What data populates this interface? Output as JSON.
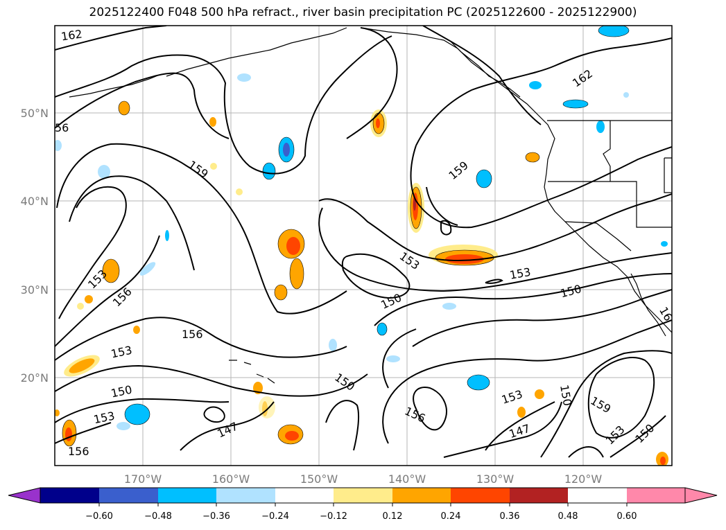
{
  "title": "2025122400 F048 500 hPa refract., river basin precipitation PC (2025122600 - 2025122900)",
  "map": {
    "lat_labels": [
      "50°N",
      "40°N",
      "30°N",
      "20°N"
    ],
    "lon_labels": [
      "170°W",
      "160°W",
      "150°W",
      "140°W",
      "130°W",
      "120°W"
    ],
    "contour_labels": [
      "162",
      "162",
      "56",
      "159",
      "159",
      "153",
      "156",
      "153",
      "150",
      "153",
      "150",
      "156",
      "153",
      "150",
      "150",
      "153",
      "156",
      "150",
      "147",
      "147",
      "153",
      "159",
      "153",
      "150",
      "156",
      "16"
    ]
  },
  "colorbar": {
    "ticks": [
      "−0.60",
      "−0.48",
      "−0.36",
      "−0.24",
      "−0.12",
      "0.12",
      "0.24",
      "0.36",
      "0.48",
      "0.60"
    ],
    "colors": [
      "#9932cc",
      "#00008b",
      "#3a5fcd",
      "#00bfff",
      "#b0e2ff",
      "#ffffff",
      "#ffec8b",
      "#ffa500",
      "#ff4500",
      "#b22222",
      "#ff88aa"
    ]
  }
}
